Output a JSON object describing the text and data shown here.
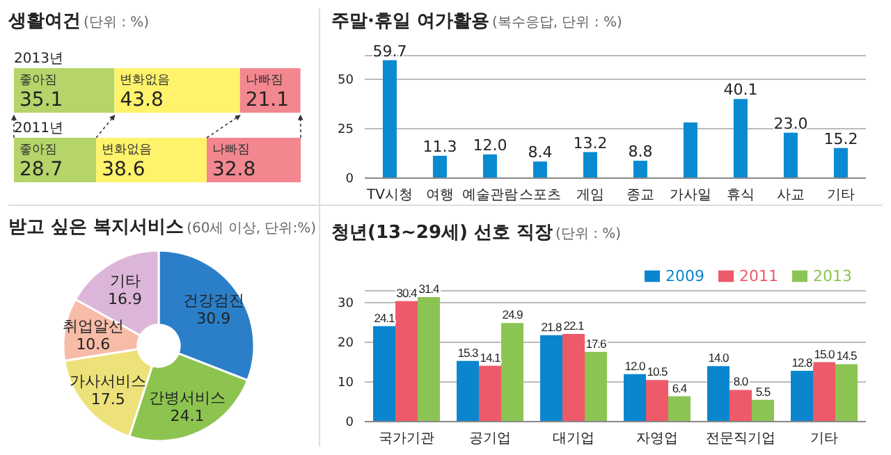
{
  "chart_data": [
    {
      "type": "bar",
      "orientation": "horizontal",
      "stacked": true,
      "title": "생활여건",
      "subtitle": "(단위 : %)",
      "categories": [
        "2013년",
        "2011년"
      ],
      "data_labels": true,
      "series": [
        {
          "name": "좋아짐",
          "color": "#b5d56a",
          "values": [
            35.1,
            28.7
          ]
        },
        {
          "name": "변화없음",
          "color": "#fff36b",
          "values": [
            43.8,
            38.6
          ]
        },
        {
          "name": "나빠짐",
          "color": "#f2878f",
          "values": [
            21.1,
            32.8
          ]
        }
      ]
    },
    {
      "type": "bar",
      "title": "주말·휴일 여가활용",
      "subtitle": "(복수응답, 단위 : %)",
      "categories": [
        "TV시청",
        "여행",
        "예술관람",
        "스포츠",
        "게임",
        "종교",
        "가사일",
        "휴식",
        "사교",
        "기타"
      ],
      "values": [
        59.7,
        11.3,
        12.0,
        8.4,
        13.2,
        8.8,
        28.2,
        40.1,
        23.0,
        15.2
      ],
      "value_labels": [
        "59.7",
        "11.3",
        "12.0",
        "8.4",
        "13.2",
        "8.8",
        null,
        "40.1",
        "23.0",
        "15.2"
      ],
      "color": "#0a8ad0",
      "ylim": [
        0,
        62
      ],
      "yticks": [
        0,
        25,
        50
      ],
      "grid": "y"
    },
    {
      "type": "donut",
      "title": "받고 싶은 복지서비스",
      "subtitle": "(60세 이상, 단위:%)",
      "categories": [
        "건강검진",
        "간병서비스",
        "가사서비스",
        "취업알선",
        "기타"
      ],
      "values": [
        30.9,
        24.1,
        17.5,
        10.6,
        16.9
      ],
      "colors": [
        "#2a7fc8",
        "#8cc44f",
        "#ede27a",
        "#f7bca8",
        "#dcb6d8"
      ],
      "data_labels": true
    },
    {
      "type": "bar",
      "title": "청년(13~29세) 선호 직장",
      "subtitle": "(단위 : %)",
      "categories": [
        "국가기관",
        "공기업",
        "대기업",
        "자영업",
        "전문직기업",
        "기타"
      ],
      "ylim": [
        0,
        33
      ],
      "yticks": [
        0,
        10,
        20,
        30
      ],
      "grid": "y",
      "legend": "top right",
      "series": [
        {
          "name": "2009",
          "color": "#0a86cf",
          "values": [
            24.1,
            15.3,
            21.8,
            12.0,
            14.0,
            12.8
          ],
          "value_labels": [
            "24.1",
            "15.3",
            "21.8",
            "12.0",
            "14.0",
            "12.8"
          ]
        },
        {
          "name": "2011",
          "color": "#ee5a6a",
          "values": [
            30.4,
            14.1,
            22.1,
            10.5,
            8.0,
            15.0
          ],
          "value_labels": [
            "30.4",
            "14.1",
            "22.1",
            "10.5",
            "8.0",
            "15.0"
          ]
        },
        {
          "name": "2013",
          "color": "#8cc454",
          "values": [
            31.4,
            24.9,
            17.6,
            6.4,
            5.5,
            14.5
          ],
          "value_labels": [
            "31.4",
            "24.9",
            "17.6",
            "6.4",
            "5.5",
            "14.5"
          ]
        }
      ]
    }
  ]
}
